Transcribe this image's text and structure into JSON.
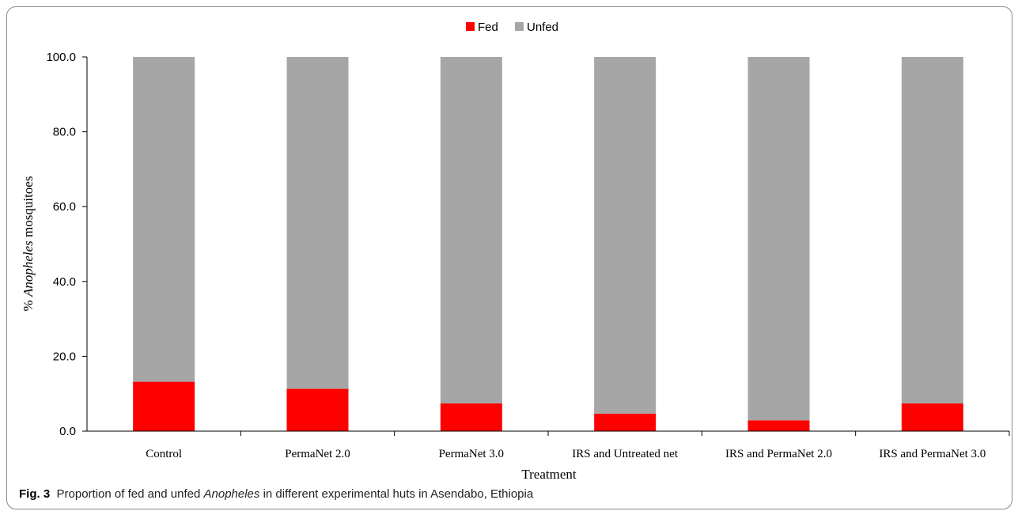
{
  "chart_data": {
    "type": "bar",
    "stacked": true,
    "categories": [
      "Control",
      "PermaNet 2.0",
      "PermaNet 3.0",
      "IRS and Untreated net",
      "IRS and PermaNet 2.0",
      "IRS and PermaNet 3.0"
    ],
    "series": [
      {
        "name": "Fed",
        "color": "#ff0000",
        "values": [
          13.2,
          11.3,
          7.4,
          4.7,
          2.9,
          7.4
        ]
      },
      {
        "name": "Unfed",
        "color": "#a6a6a6",
        "values": [
          86.8,
          88.7,
          92.6,
          95.3,
          97.1,
          92.6
        ]
      }
    ],
    "xlabel": "Treatment",
    "ylabel_prefix": "% ",
    "ylabel_italic": "Anopheles",
    "ylabel_suffix": " mosquitoes",
    "ylim": [
      0,
      100
    ],
    "yticks": [
      "0.0",
      "20.0",
      "40.0",
      "60.0",
      "80.0",
      "100.0"
    ],
    "legend_position": "top-center",
    "grid": false
  },
  "caption": {
    "label": "Fig. 3",
    "text_before": "Proportion of fed and unfed ",
    "text_italic": "Anopheles",
    "text_after": " in different experimental huts in Asendabo, Ethiopia"
  }
}
